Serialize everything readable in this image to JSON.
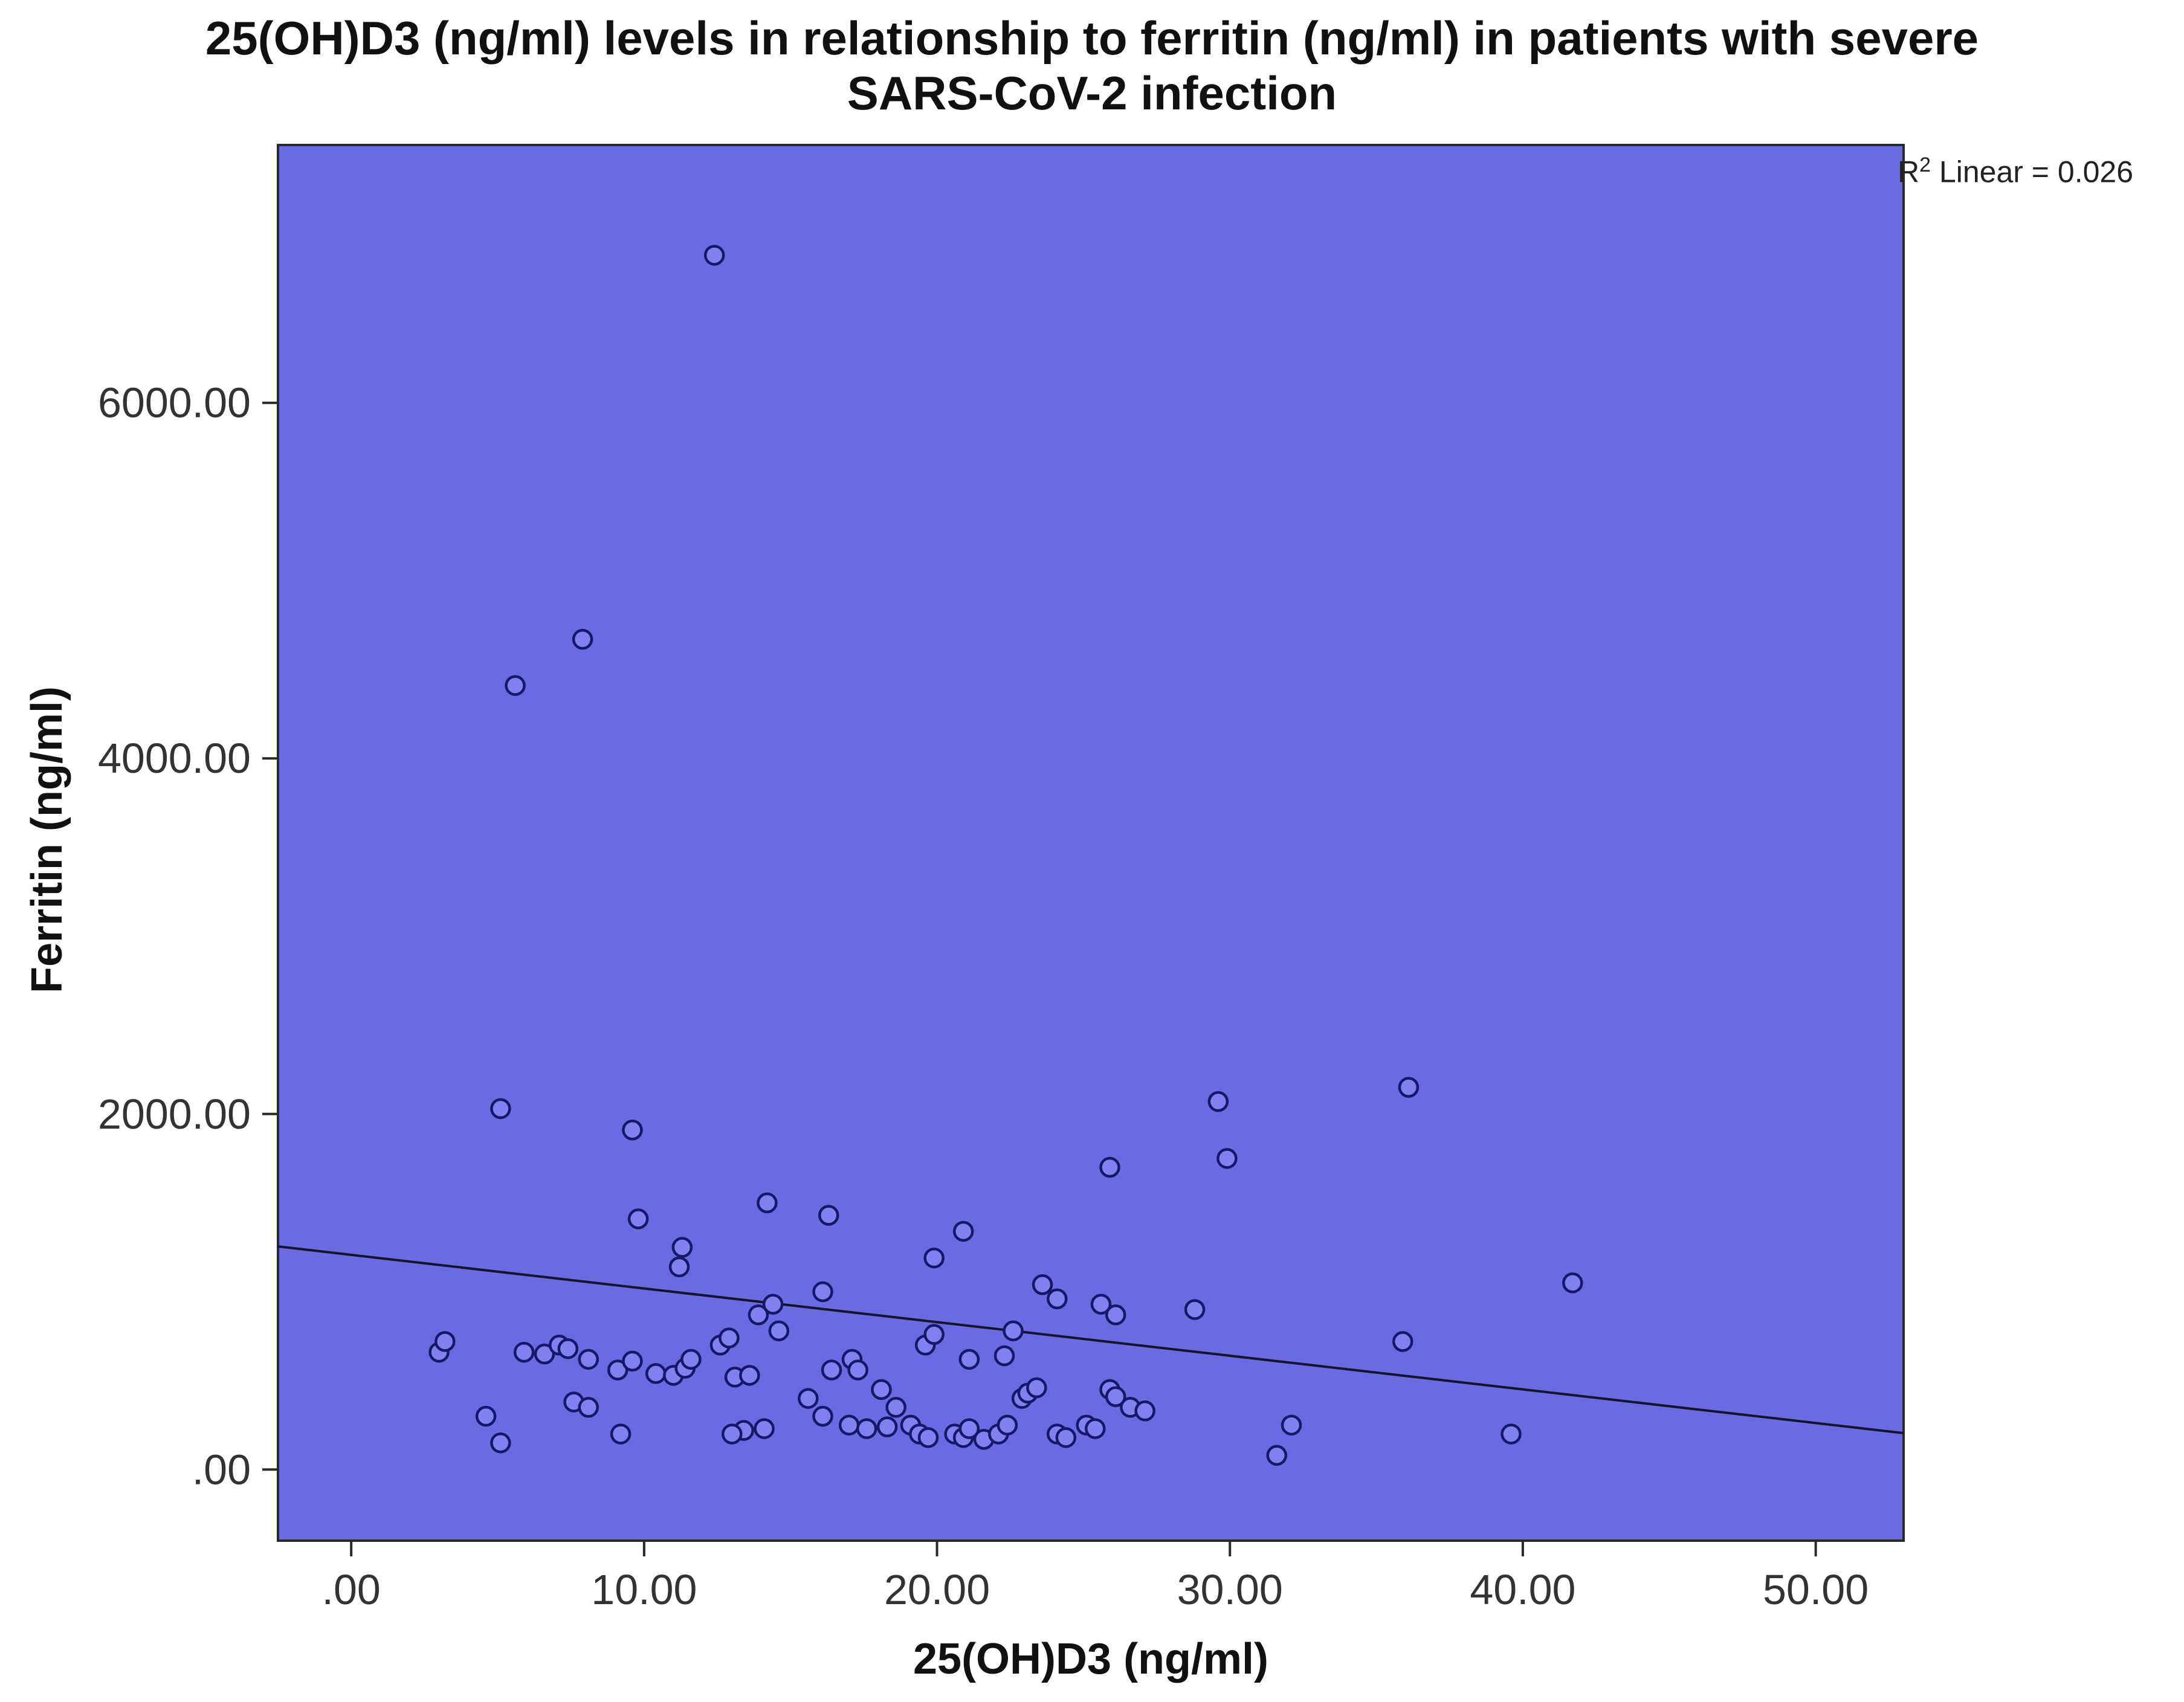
{
  "chart_data": {
    "type": "scatter",
    "title_line1": "25(OH)D3 (ng/ml) levels in relationship to ferritin (ng/ml) in patients with severe",
    "title_line2": "SARS-CoV-2 infection",
    "xlabel": "25(OH)D3 (ng/ml)",
    "ylabel": "Ferritin (ng/ml)",
    "annotation": {
      "r2_prefix": "R",
      "r2_sup": "2",
      "r2_rest": " Linear = 0.026"
    },
    "x_ticks": {
      "values": [
        0,
        10,
        20,
        30,
        40,
        50
      ],
      "labels": [
        ".00",
        "10.00",
        "20.00",
        "30.00",
        "40.00",
        "50.00"
      ]
    },
    "y_ticks": {
      "values": [
        0,
        2000,
        4000,
        6000
      ],
      "labels": [
        ".00",
        "2000.00",
        "4000.00",
        "6000.00"
      ]
    },
    "xlim": [
      -2.5,
      53
    ],
    "ylim": [
      -400,
      7450
    ],
    "grid": false,
    "legend": "none",
    "fit_line": {
      "x1": -2.5,
      "y1": 1255,
      "x2": 53,
      "y2": 205
    },
    "colors": {
      "plot_bg": "#6a6ae2",
      "marker_fill": "#8080f0",
      "marker_stroke": "#18186a",
      "fit_line": "#15152f",
      "axis": "#2a2a2a",
      "tick_label": "#333333"
    },
    "points": [
      [
        12.4,
        6830
      ],
      [
        7.9,
        4670
      ],
      [
        5.6,
        4410
      ],
      [
        5.1,
        2030
      ],
      [
        9.6,
        1910
      ],
      [
        29.6,
        2070
      ],
      [
        36.1,
        2150
      ],
      [
        29.9,
        1750
      ],
      [
        25.9,
        1700
      ],
      [
        14.2,
        1500
      ],
      [
        16.3,
        1430
      ],
      [
        9.8,
        1410
      ],
      [
        20.9,
        1340
      ],
      [
        11.3,
        1250
      ],
      [
        19.9,
        1190
      ],
      [
        41.7,
        1050
      ],
      [
        11.2,
        1140
      ],
      [
        23.6,
        1040
      ],
      [
        16.1,
        1000
      ],
      [
        24.1,
        960
      ],
      [
        25.6,
        930
      ],
      [
        28.8,
        900
      ],
      [
        14.4,
        930
      ],
      [
        13.9,
        870
      ],
      [
        26.1,
        870
      ],
      [
        3.0,
        660
      ],
      [
        3.2,
        720
      ],
      [
        5.9,
        660
      ],
      [
        6.6,
        650
      ],
      [
        7.1,
        700
      ],
      [
        7.4,
        680
      ],
      [
        8.1,
        620
      ],
      [
        9.1,
        560
      ],
      [
        9.6,
        610
      ],
      [
        10.4,
        540
      ],
      [
        11.0,
        530
      ],
      [
        11.4,
        570
      ],
      [
        11.6,
        620
      ],
      [
        12.6,
        700
      ],
      [
        12.9,
        740
      ],
      [
        13.1,
        520
      ],
      [
        13.6,
        530
      ],
      [
        14.6,
        780
      ],
      [
        16.4,
        560
      ],
      [
        17.1,
        620
      ],
      [
        17.3,
        560
      ],
      [
        19.6,
        700
      ],
      [
        19.9,
        760
      ],
      [
        21.1,
        620
      ],
      [
        22.6,
        780
      ],
      [
        35.9,
        720
      ],
      [
        4.6,
        300
      ],
      [
        5.1,
        150
      ],
      [
        7.6,
        380
      ],
      [
        8.1,
        350
      ],
      [
        9.2,
        200
      ],
      [
        13.4,
        220
      ],
      [
        14.1,
        230
      ],
      [
        13.0,
        200
      ],
      [
        15.6,
        400
      ],
      [
        16.1,
        300
      ],
      [
        17.0,
        250
      ],
      [
        17.6,
        230
      ],
      [
        18.1,
        450
      ],
      [
        18.6,
        350
      ],
      [
        19.1,
        250
      ],
      [
        19.4,
        200
      ],
      [
        19.7,
        180
      ],
      [
        20.6,
        200
      ],
      [
        20.9,
        180
      ],
      [
        21.1,
        230
      ],
      [
        21.6,
        170
      ],
      [
        22.1,
        200
      ],
      [
        22.4,
        250
      ],
      [
        22.9,
        400
      ],
      [
        23.1,
        430
      ],
      [
        23.4,
        460
      ],
      [
        24.1,
        200
      ],
      [
        24.4,
        180
      ],
      [
        25.1,
        250
      ],
      [
        25.4,
        230
      ],
      [
        25.9,
        450
      ],
      [
        26.1,
        410
      ],
      [
        26.6,
        350
      ],
      [
        27.1,
        330
      ],
      [
        31.6,
        80
      ],
      [
        32.1,
        250
      ],
      [
        39.6,
        200
      ],
      [
        22.3,
        640
      ],
      [
        18.3,
        240
      ]
    ]
  }
}
